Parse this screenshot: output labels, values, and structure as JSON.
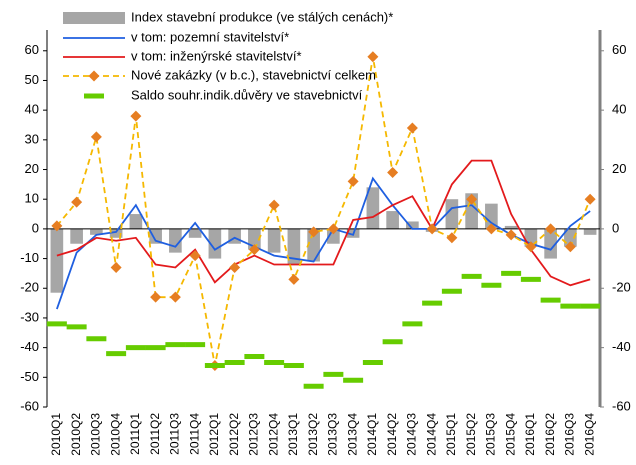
{
  "chart_data": {
    "type": "combo",
    "categories": [
      "2010Q1",
      "2010Q2",
      "2010Q3",
      "2010Q4",
      "2011Q1",
      "2011Q2",
      "2011Q3",
      "2011Q4",
      "2012Q1",
      "2012Q2",
      "2012Q3",
      "2012Q4",
      "2013Q1",
      "2013Q2",
      "2013Q3",
      "2013Q4",
      "2014Q1",
      "2014Q2",
      "2014Q3",
      "2014Q4",
      "2015Q1",
      "2015Q2",
      "2015Q3",
      "2015Q4",
      "2016Q1",
      "2016Q2",
      "2016Q3",
      "2016Q4"
    ],
    "series": [
      {
        "name": "Index stavební produkce (ve stálých cenách)*",
        "type": "bar",
        "color": "#a6a6a6",
        "values": [
          -21.5,
          -5,
          -2,
          -3,
          5,
          -5,
          -8,
          -3,
          -10,
          -5,
          -7,
          -8,
          -12,
          -11,
          -5,
          -3,
          14,
          6,
          2.5,
          -1,
          10,
          12,
          8.5,
          1,
          -6,
          -10,
          -6,
          -2
        ]
      },
      {
        "name": "v tom: pozemní stavitelství*",
        "type": "line",
        "color": "#1f5fe0",
        "values": [
          -27,
          -8,
          -2,
          -1,
          8,
          -4,
          -6,
          2,
          -7,
          -3,
          -6,
          -9,
          -10,
          -11,
          0,
          -2,
          17,
          8,
          0,
          0,
          7,
          8,
          2,
          -2,
          -5,
          -7,
          1,
          6
        ]
      },
      {
        "name": "v tom: inženýrské stavitelství*",
        "type": "line",
        "color": "#e31a1c",
        "values": [
          -9,
          -7,
          -3,
          -4,
          -3,
          -12,
          -13,
          -7,
          -18,
          -12,
          -9,
          -12,
          -12,
          -12,
          -12,
          3,
          4,
          8,
          11,
          0,
          15,
          23,
          23,
          5,
          -7,
          -16,
          -19,
          -17
        ]
      },
      {
        "name": "Nové zakázky (v b.c.), stavebnictví celkem",
        "type": "dashed",
        "color": "#f5b800",
        "marker_color": "#e67e22",
        "values": [
          1,
          9,
          31,
          -13,
          38,
          -23,
          -23,
          -9,
          -46,
          -13,
          -7,
          8,
          -17,
          -1,
          0,
          16,
          58,
          19,
          34,
          0,
          -3,
          10,
          0,
          -2,
          -6,
          0,
          -6,
          10
        ]
      },
      {
        "name": "Saldo souhr.indik.důvěry ve stavebnictví",
        "type": "dash",
        "color": "#66cc00",
        "axis": "y2",
        "values": [
          -32,
          -33,
          -37,
          -42,
          -40,
          -40,
          -39,
          -39,
          -46,
          -45,
          -43,
          -45,
          -46,
          -53,
          -49,
          -51,
          -45,
          -38,
          -32,
          -25,
          -21,
          -16,
          -19,
          -15,
          -17,
          -24,
          -26,
          -26
        ]
      }
    ],
    "ylim": [
      -60,
      67
    ],
    "yticks": [
      -60,
      -50,
      -40,
      -30,
      -20,
      -10,
      0,
      10,
      20,
      30,
      40,
      50,
      60
    ],
    "y2lim": [
      -60,
      67
    ],
    "y2ticks": [
      -60,
      -40,
      -20,
      0,
      20,
      40,
      60
    ],
    "legend": "upper left"
  }
}
